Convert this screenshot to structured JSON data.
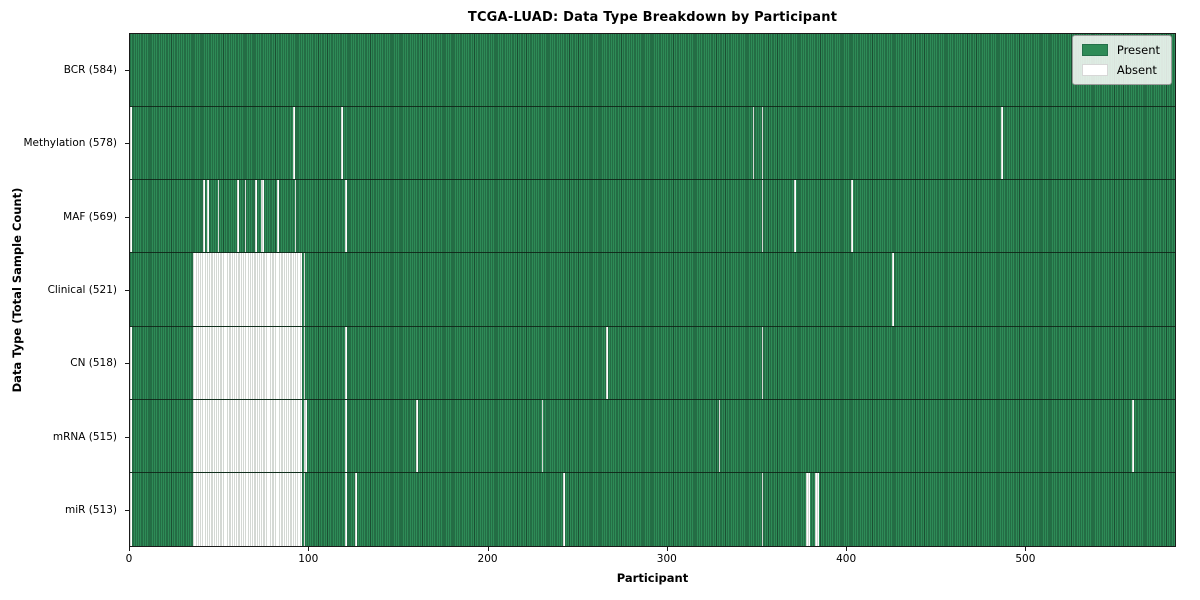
{
  "chart_data": {
    "type": "heatmap",
    "title": "TCGA-LUAD: Data Type Breakdown by Participant",
    "xlabel": "Participant",
    "ylabel": "Data Type (Total Sample Count)",
    "x_ticks": [
      0,
      100,
      200,
      300,
      400,
      500
    ],
    "n_participants": 584,
    "grid": false,
    "colors": {
      "present": "#2e8b57",
      "present_stripe": "#1b4f33",
      "absent": "#ffffff",
      "absent_stripe": "#a8b0a8"
    },
    "legend": {
      "position": "upper right",
      "entries": [
        {
          "label": "Present",
          "color": "#2e8b57"
        },
        {
          "label": "Absent",
          "color": "#ffffff"
        }
      ]
    },
    "rows": [
      {
        "label": "BCR (584)",
        "data_type": "BCR",
        "present_count": 584,
        "absent": []
      },
      {
        "label": "Methylation (578)",
        "data_type": "Methylation",
        "present_count": 578,
        "absent": [
          0,
          91,
          118,
          348,
          353,
          487
        ]
      },
      {
        "label": "MAF (569)",
        "data_type": "MAF",
        "present_count": 569,
        "absent": [
          0,
          41,
          43,
          49,
          60,
          64,
          70,
          73,
          74,
          82,
          92,
          120,
          353,
          371,
          403
        ]
      },
      {
        "label": "Clinical (521)",
        "data_type": "Clinical",
        "present_count": 521,
        "absent": [
          [
            35,
            95
          ],
          97,
          426
        ]
      },
      {
        "label": "CN (518)",
        "data_type": "CN",
        "present_count": 518,
        "absent": [
          0,
          [
            35,
            95
          ],
          97,
          120,
          266,
          353
        ]
      },
      {
        "label": "mRNA (515)",
        "data_type": "mRNA",
        "present_count": 515,
        "absent": [
          0,
          [
            35,
            95
          ],
          97,
          98,
          120,
          160,
          230,
          329,
          560
        ]
      },
      {
        "label": "miR (513)",
        "data_type": "miR",
        "present_count": 513,
        "absent": [
          0,
          [
            35,
            95
          ],
          97,
          120,
          126,
          242,
          353,
          378,
          379,
          383,
          384
        ]
      }
    ]
  }
}
